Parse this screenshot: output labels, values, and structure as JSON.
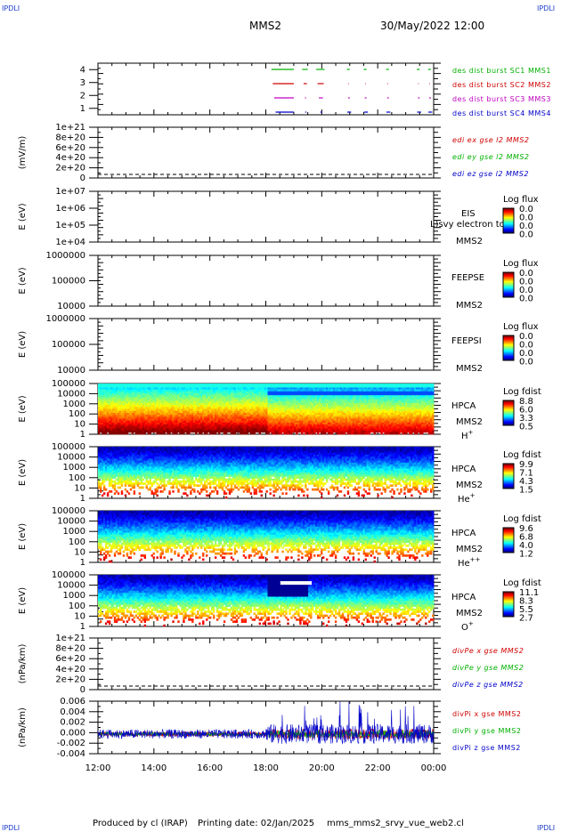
{
  "header": {
    "corner_tag": "IPDLI",
    "spacecraft": "MMS2",
    "datetime": "30/May/2022 12:00"
  },
  "footer": {
    "produced_by": "Produced by cl (IRAP)",
    "printing_date": "Printing date: 02/Jan/2025",
    "script": "mms_mms2_srvy_vue_web2.cl"
  },
  "colors": {
    "axis": "#000000",
    "red": "#d00000",
    "green": "#00b000",
    "blue": "#0000c8",
    "magenta": "#c000c0",
    "navy": "#1a3cd0"
  },
  "chart_data": [
    {
      "type": "line",
      "panel": "burst",
      "yticks": [
        "1",
        "2",
        "3",
        "4"
      ],
      "ylim": [
        0.5,
        4.5
      ],
      "series": [
        {
          "name": "des dist burst SC1 MMS1",
          "color": "#00b000",
          "level": 4
        },
        {
          "name": "des dist burst SC2 MMS2",
          "color": "#d00000",
          "level": 3
        },
        {
          "name": "des dist burst SC3 MMS3",
          "color": "#c000c0",
          "level": 2
        },
        {
          "name": "des dist burst SC4 MMS4",
          "color": "#0000c8",
          "level": 1
        }
      ],
      "burst_intervals_hours": [
        [
          18.2,
          19.0
        ],
        [
          19.3,
          19.5
        ],
        [
          19.8,
          20.1
        ],
        [
          20.9,
          21.0
        ],
        [
          21.5,
          21.6
        ],
        [
          22.3,
          22.4
        ],
        [
          23.4,
          23.5
        ],
        [
          23.8,
          23.9
        ]
      ]
    },
    {
      "type": "line",
      "panel": "edi",
      "ylabel": "(mV/m)",
      "yticks": [
        "1e+21",
        "8e+20",
        "6e+20",
        "4e+20",
        "2e+20",
        "0"
      ],
      "series": [
        {
          "name": "edi ex gse l2 MMS2",
          "color": "#d00000"
        },
        {
          "name": "edi ey gse l2 MMS2",
          "color": "#00b000"
        },
        {
          "name": "edi ez gse l2 MMS2",
          "color": "#0000c8"
        }
      ]
    },
    {
      "type": "heatmap",
      "panel": "eis",
      "ylabel": "E (eV)",
      "yticks": [
        "1e+07",
        "1e+06",
        "1e+05",
        "1e+04"
      ],
      "labels": [
        "EIS",
        "MMS2"
      ],
      "overlay_text": "L)svy electron to",
      "colorbar_title": "Log flux",
      "colorbar_ticks": [
        "0.0",
        "0.0",
        "0.0",
        "0.0"
      ],
      "has_data": false
    },
    {
      "type": "heatmap",
      "panel": "feepse",
      "ylabel": "E (eV)",
      "yticks": [
        "1000000",
        "100000",
        "10000"
      ],
      "labels": [
        "FEEPSE",
        "MMS2"
      ],
      "colorbar_title": "Log flux",
      "colorbar_ticks": [
        "0.0",
        "0.0",
        "0.0",
        "0.0"
      ],
      "has_data": false
    },
    {
      "type": "heatmap",
      "panel": "feepsi",
      "ylabel": "E (eV)",
      "yticks": [
        "1000000",
        "100000",
        "10000"
      ],
      "labels": [
        "FEEPSI",
        "MMS2"
      ],
      "colorbar_title": "Log flux",
      "colorbar_ticks": [
        "0.0",
        "0.0",
        "0.0",
        "0.0"
      ],
      "has_data": false
    },
    {
      "type": "heatmap",
      "panel": "hpca_h",
      "ylabel": "E (eV)",
      "yticks": [
        "100000",
        "10000",
        "1000",
        "100",
        "10",
        "1"
      ],
      "labels": [
        "HPCA",
        "MMS2"
      ],
      "species": "H",
      "species_sup": "+",
      "colorbar_title": "Log fdist",
      "colorbar_ticks": [
        "8.8",
        "6.0",
        "3.3",
        "0.5"
      ],
      "has_data": true
    },
    {
      "type": "heatmap",
      "panel": "hpca_he",
      "ylabel": "E (eV)",
      "yticks": [
        "100000",
        "10000",
        "1000",
        "100",
        "10",
        "1"
      ],
      "labels": [
        "HPCA",
        "MMS2"
      ],
      "species": "He",
      "species_sup": "+",
      "colorbar_title": "Log fdist",
      "colorbar_ticks": [
        "9.9",
        "7.1",
        "4.3",
        "1.5"
      ],
      "has_data": true
    },
    {
      "type": "heatmap",
      "panel": "hpca_he2",
      "ylabel": "E (eV)",
      "yticks": [
        "100000",
        "10000",
        "1000",
        "100",
        "10",
        "1"
      ],
      "labels": [
        "HPCA",
        "MMS2"
      ],
      "species": "He",
      "species_sup": "++",
      "colorbar_title": "Log fdist",
      "colorbar_ticks": [
        "9.6",
        "6.8",
        "4.0",
        "1.2"
      ],
      "has_data": true
    },
    {
      "type": "heatmap",
      "panel": "hpca_o",
      "ylabel": "E (eV)",
      "yticks": [
        "100000",
        "10000",
        "1000",
        "100",
        "10",
        "1"
      ],
      "labels": [
        "HPCA",
        "MMS2"
      ],
      "species": "O",
      "species_sup": "+",
      "colorbar_title": "Log fdist",
      "colorbar_ticks": [
        "11.1",
        "8.3",
        "5.5",
        "2.7"
      ],
      "has_data": true
    },
    {
      "type": "line",
      "panel": "divpe",
      "ylabel": "(nPa/km)",
      "yticks": [
        "1e+21",
        "8e+20",
        "6e+20",
        "4e+20",
        "2e+20",
        "0"
      ],
      "series": [
        {
          "name": "divPe x gse MMS2",
          "color": "#d00000"
        },
        {
          "name": "divPe y gse MMS2",
          "color": "#00b000"
        },
        {
          "name": "divPe z gse MMS2",
          "color": "#0000c8"
        }
      ]
    },
    {
      "type": "line",
      "panel": "divpi",
      "ylabel": "(nPa/km)",
      "yticks": [
        "0.006",
        "0.004",
        "0.002",
        "0.000",
        "-0.002",
        "-0.004"
      ],
      "ylim": [
        -0.0045,
        0.0075
      ],
      "series": [
        {
          "name": "divPi x gse MMS2",
          "color": "#d00000",
          "amplitude": 0.0008
        },
        {
          "name": "divPi y gse MMS2",
          "color": "#00b000",
          "amplitude": 0.0006
        },
        {
          "name": "divPi z gse MMS2",
          "color": "#0000c8",
          "amplitude": 0.0015
        }
      ],
      "xlabels": [
        "12:00",
        "14:00",
        "16:00",
        "18:00",
        "20:00",
        "22:00",
        "00:00"
      ]
    }
  ]
}
